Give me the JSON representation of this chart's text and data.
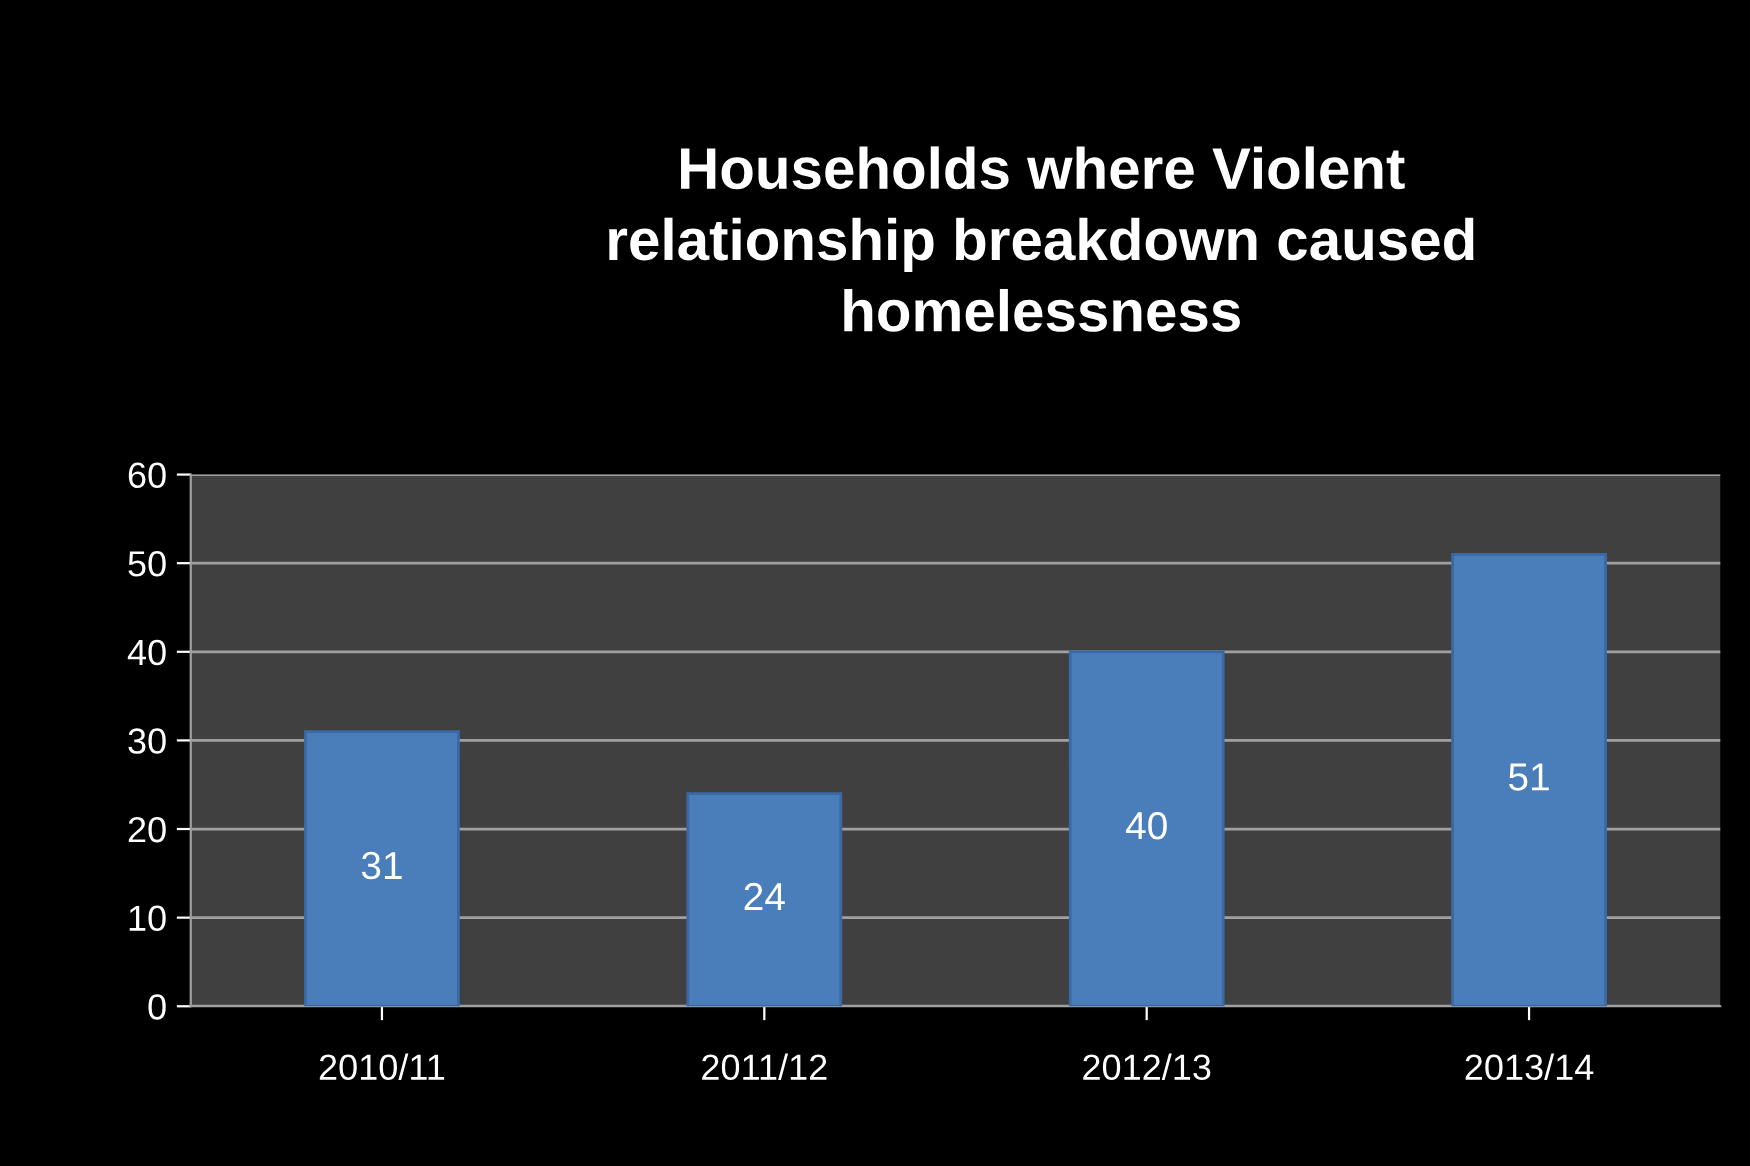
{
  "chart_data": {
    "type": "bar",
    "title": "Households where Violent\nrelationship breakdown caused\nhomelessness",
    "categories": [
      "2010/11",
      "2011/12",
      "2012/13",
      "2013/14"
    ],
    "values": [
      31,
      24,
      40,
      51
    ],
    "color": "#4a7ebb",
    "ylim": [
      0,
      60
    ],
    "yticks": [
      0,
      10,
      20,
      30,
      40,
      50,
      60
    ],
    "grid": "y",
    "data_labels": true
  }
}
